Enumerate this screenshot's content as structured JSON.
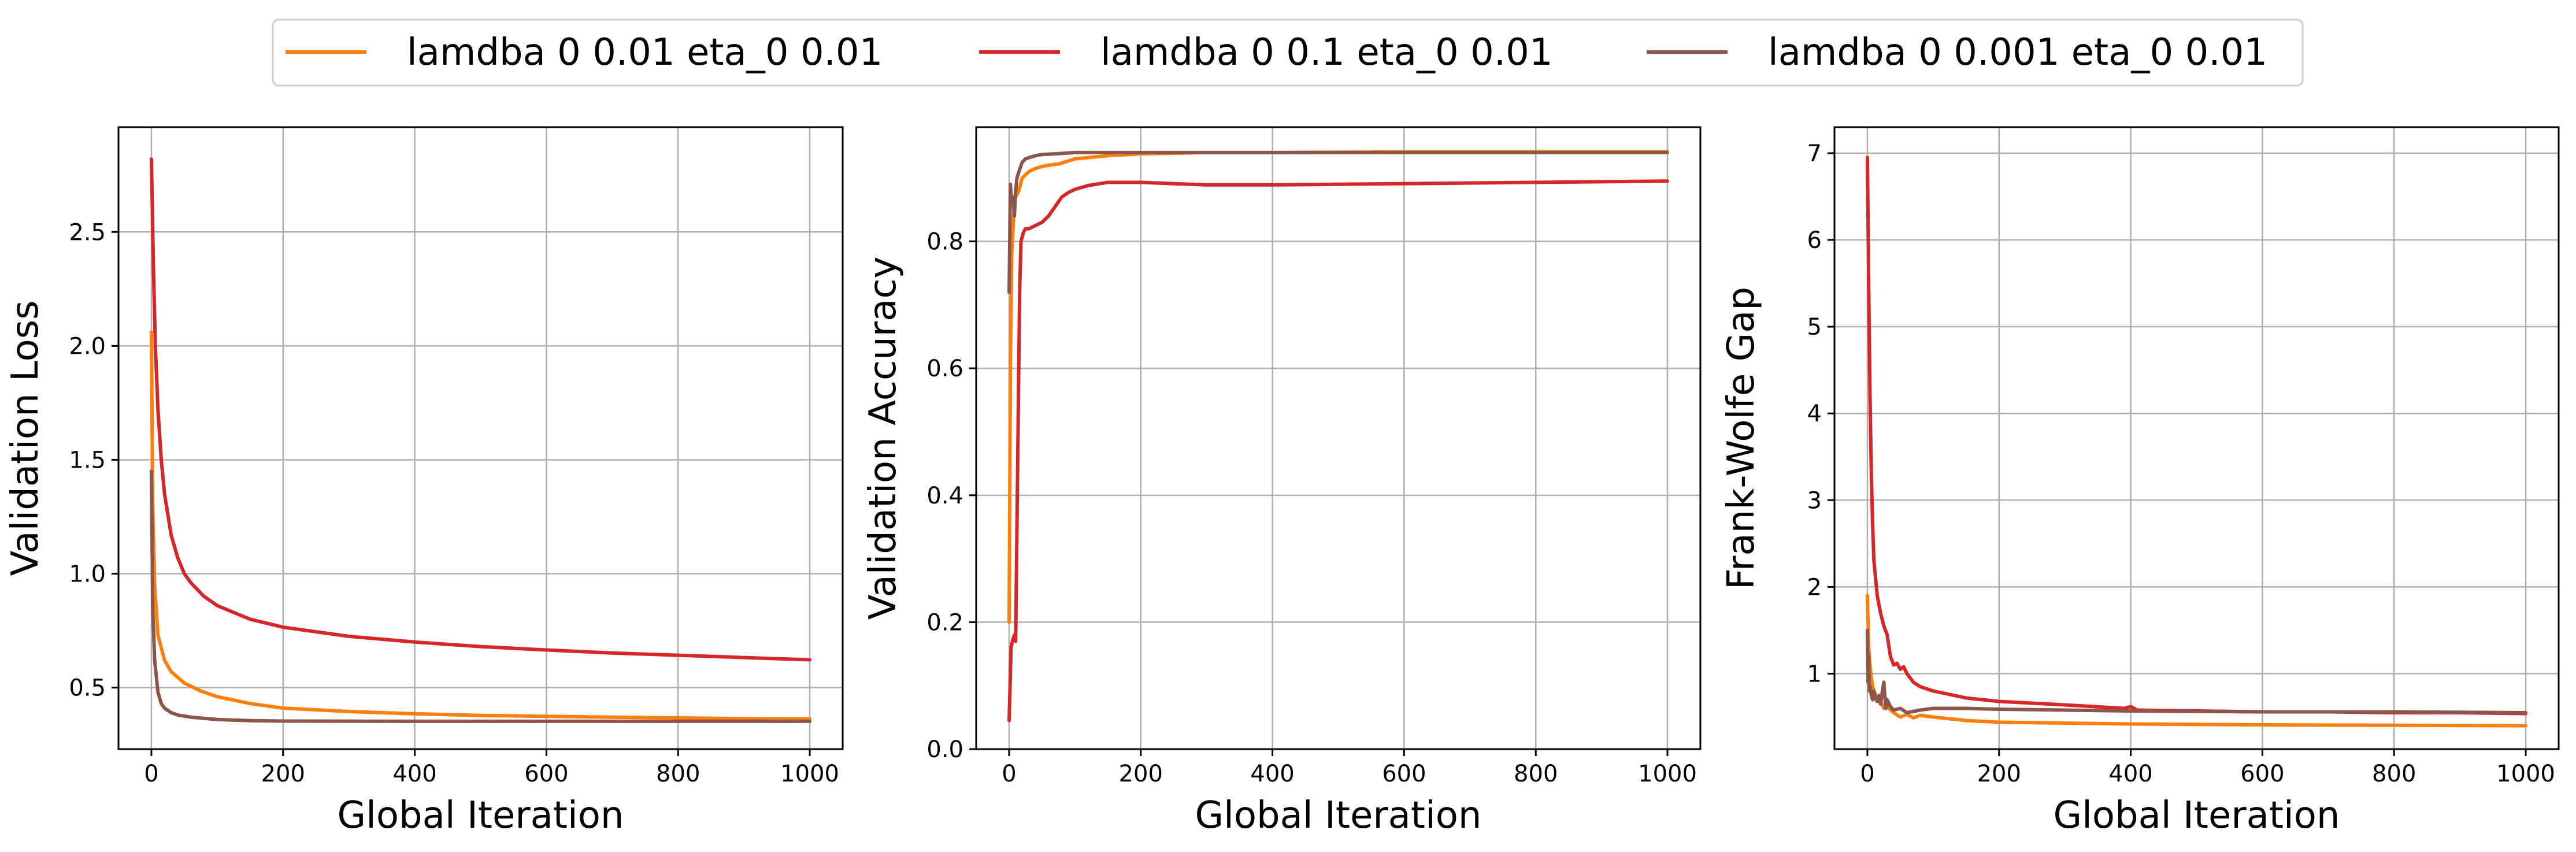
{
  "legend": {
    "entries": [
      {
        "label": "lamdba 0 0.01 eta_0 0.01",
        "color": "#ff7f0e"
      },
      {
        "label": "lamdba 0 0.1 eta_0 0.01",
        "color": "#d62728"
      },
      {
        "label": "lamdba 0 0.001 eta_0 0.01",
        "color": "#8c564b"
      }
    ],
    "placement": "top-center"
  },
  "chart_data": [
    {
      "type": "line",
      "xlabel": "Global Iteration",
      "ylabel": "Validation Loss",
      "xlim": [
        -50,
        1050
      ],
      "ylim": [
        0.23,
        2.96
      ],
      "xticks": [
        0,
        200,
        400,
        600,
        800,
        1000
      ],
      "yticks": [
        0.5,
        1.0,
        1.5,
        2.0,
        2.5
      ],
      "ytick_labels": [
        "0.5",
        "1.0",
        "1.5",
        "2.0",
        "2.5"
      ],
      "grid": true,
      "series": [
        {
          "name": "lamdba 0 0.01 eta_0 0.01",
          "color": "#ff7f0e",
          "x": [
            0,
            2,
            5,
            10,
            20,
            30,
            50,
            75,
            100,
            150,
            200,
            300,
            400,
            500,
            600,
            700,
            800,
            900,
            1000
          ],
          "y": [
            2.06,
            1.3,
            0.95,
            0.73,
            0.62,
            0.57,
            0.52,
            0.485,
            0.46,
            0.43,
            0.41,
            0.395,
            0.385,
            0.378,
            0.374,
            0.37,
            0.367,
            0.364,
            0.362
          ]
        },
        {
          "name": "lamdba 0 0.1 eta_0 0.01",
          "color": "#d62728",
          "x": [
            0,
            3,
            6,
            10,
            15,
            20,
            30,
            40,
            50,
            60,
            80,
            100,
            150,
            200,
            300,
            400,
            500,
            600,
            700,
            800,
            900,
            1000
          ],
          "y": [
            2.82,
            2.35,
            2.0,
            1.72,
            1.5,
            1.35,
            1.17,
            1.07,
            1.0,
            0.96,
            0.9,
            0.86,
            0.8,
            0.765,
            0.725,
            0.7,
            0.68,
            0.665,
            0.652,
            0.642,
            0.632,
            0.622
          ]
        },
        {
          "name": "lamdba 0 0.001 eta_0 0.01",
          "color": "#8c564b",
          "x": [
            0,
            2,
            5,
            10,
            15,
            20,
            30,
            40,
            60,
            100,
            150,
            200,
            400,
            600,
            800,
            1000
          ],
          "y": [
            1.45,
            0.85,
            0.62,
            0.48,
            0.43,
            0.41,
            0.39,
            0.38,
            0.37,
            0.36,
            0.355,
            0.353,
            0.352,
            0.352,
            0.352,
            0.352
          ]
        }
      ]
    },
    {
      "type": "line",
      "xlabel": "Global Iteration",
      "ylabel": "Validation Accuracy",
      "xlim": [
        -50,
        1050
      ],
      "ylim": [
        0.0,
        0.98
      ],
      "xticks": [
        0,
        200,
        400,
        600,
        800,
        1000
      ],
      "yticks": [
        0.0,
        0.2,
        0.4,
        0.6,
        0.8
      ],
      "ytick_labels": [
        "0.0",
        "0.2",
        "0.4",
        "0.6",
        "0.8"
      ],
      "grid": true,
      "series": [
        {
          "name": "lamdba 0 0.01 eta_0 0.01",
          "color": "#ff7f0e",
          "x": [
            0,
            2,
            4,
            6,
            8,
            10,
            15,
            20,
            30,
            40,
            50,
            60,
            75,
            100,
            150,
            200,
            300,
            400,
            600,
            800,
            1000
          ],
          "y": [
            0.2,
            0.6,
            0.78,
            0.82,
            0.86,
            0.87,
            0.88,
            0.9,
            0.91,
            0.915,
            0.918,
            0.92,
            0.922,
            0.93,
            0.935,
            0.938,
            0.94,
            0.94,
            0.941,
            0.941,
            0.941
          ]
        },
        {
          "name": "lamdba 0 0.1 eta_0 0.01",
          "color": "#d62728",
          "x": [
            0,
            3,
            5,
            8,
            10,
            13,
            16,
            18,
            22,
            25,
            30,
            40,
            50,
            60,
            70,
            80,
            90,
            100,
            120,
            150,
            200,
            250,
            300,
            400,
            500,
            600,
            700,
            800,
            900,
            1000
          ],
          "y": [
            0.045,
            0.16,
            0.17,
            0.18,
            0.17,
            0.45,
            0.72,
            0.8,
            0.815,
            0.82,
            0.82,
            0.825,
            0.83,
            0.84,
            0.855,
            0.87,
            0.877,
            0.882,
            0.888,
            0.893,
            0.893,
            0.891,
            0.889,
            0.889,
            0.89,
            0.891,
            0.892,
            0.893,
            0.894,
            0.895
          ]
        },
        {
          "name": "lamdba 0 0.001 eta_0 0.01",
          "color": "#8c564b",
          "x": [
            0,
            2,
            4,
            6,
            8,
            10,
            12,
            15,
            20,
            25,
            30,
            40,
            50,
            70,
            100,
            150,
            200,
            400,
            600,
            800,
            1000
          ],
          "y": [
            0.72,
            0.89,
            0.86,
            0.87,
            0.84,
            0.88,
            0.9,
            0.91,
            0.925,
            0.93,
            0.932,
            0.935,
            0.937,
            0.938,
            0.94,
            0.94,
            0.94,
            0.94,
            0.94,
            0.94,
            0.94
          ]
        }
      ]
    },
    {
      "type": "line",
      "xlabel": "Global Iteration",
      "ylabel": "Frank-Wolfe Gap",
      "xlim": [
        -50,
        1050
      ],
      "ylim": [
        0.13,
        7.3
      ],
      "xticks": [
        0,
        200,
        400,
        600,
        800,
        1000
      ],
      "yticks": [
        1,
        2,
        3,
        4,
        5,
        6,
        7
      ],
      "ytick_labels": [
        "1",
        "2",
        "3",
        "4",
        "5",
        "6",
        "7"
      ],
      "grid": true,
      "series": [
        {
          "name": "lamdba 0 0.01 eta_0 0.01",
          "color": "#ff7f0e",
          "x": [
            0,
            2,
            4,
            6,
            8,
            10,
            15,
            20,
            25,
            30,
            40,
            50,
            60,
            70,
            80,
            100,
            150,
            200,
            300,
            400,
            600,
            800,
            1000
          ],
          "y": [
            1.9,
            1.3,
            1.1,
            0.95,
            0.85,
            0.8,
            0.72,
            0.68,
            0.6,
            0.62,
            0.55,
            0.5,
            0.53,
            0.49,
            0.52,
            0.5,
            0.46,
            0.44,
            0.43,
            0.42,
            0.41,
            0.405,
            0.4
          ]
        },
        {
          "name": "lamdba 0 0.1 eta_0 0.01",
          "color": "#d62728",
          "x": [
            0,
            2,
            4,
            6,
            8,
            10,
            15,
            20,
            25,
            30,
            35,
            40,
            45,
            50,
            55,
            60,
            70,
            80,
            100,
            150,
            200,
            300,
            390,
            400,
            410,
            500,
            600,
            700,
            800,
            900,
            1000
          ],
          "y": [
            6.95,
            5.5,
            4.2,
            3.3,
            2.7,
            2.3,
            1.9,
            1.7,
            1.55,
            1.45,
            1.2,
            1.1,
            1.12,
            1.05,
            1.08,
            1.0,
            0.9,
            0.85,
            0.8,
            0.72,
            0.68,
            0.64,
            0.6,
            0.62,
            0.58,
            0.57,
            0.56,
            0.56,
            0.55,
            0.55,
            0.54
          ]
        },
        {
          "name": "lamdba 0 0.001 eta_0 0.01",
          "color": "#8c564b",
          "x": [
            0,
            1,
            2,
            3,
            4,
            6,
            8,
            10,
            12,
            15,
            18,
            20,
            25,
            28,
            30,
            35,
            40,
            50,
            60,
            80,
            100,
            150,
            200,
            300,
            400,
            600,
            800,
            1000
          ],
          "y": [
            1.5,
            0.9,
            1.2,
            0.8,
            0.85,
            0.75,
            0.7,
            0.8,
            0.72,
            0.68,
            0.75,
            0.65,
            0.9,
            0.6,
            0.7,
            0.62,
            0.58,
            0.6,
            0.55,
            0.58,
            0.6,
            0.6,
            0.59,
            0.58,
            0.57,
            0.56,
            0.56,
            0.55
          ]
        }
      ]
    }
  ]
}
